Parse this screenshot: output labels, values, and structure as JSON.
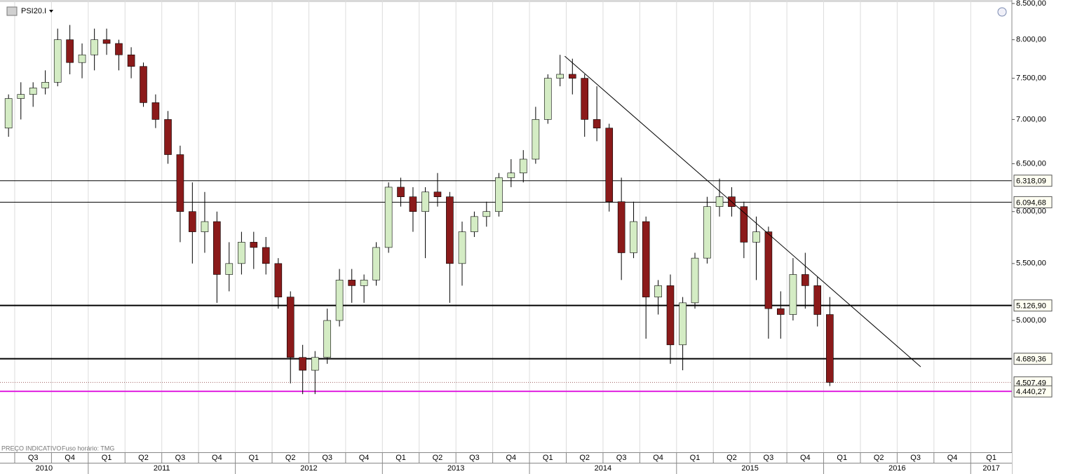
{
  "chart_data": {
    "type": "candlestick",
    "title": "PSI20.I",
    "footnotes": [
      "PREÇO INDICATIVO",
      "Fuso horário: TMG"
    ],
    "log_scale": true,
    "grid": "vertical",
    "xlim": [
      2010.4,
      2017.28
    ],
    "ylim": [
      4010,
      8550
    ],
    "yticks": [
      {
        "value": 8500,
        "label": "8.500,00"
      },
      {
        "value": 8000,
        "label": "8.000,00"
      },
      {
        "value": 7500,
        "label": "7.500,00"
      },
      {
        "value": 7000,
        "label": "7.000,00"
      },
      {
        "value": 6500,
        "label": "6.500,00"
      },
      {
        "value": 6000,
        "label": "6.000,00"
      },
      {
        "value": 5500,
        "label": "5.500,00"
      },
      {
        "value": 5000,
        "label": "5.000,00"
      }
    ],
    "xticks": [
      {
        "value": 2010.5,
        "label": "Q3"
      },
      {
        "value": 2010.75,
        "label": "Q4"
      },
      {
        "value": 2011,
        "label": "Q1"
      },
      {
        "value": 2011.25,
        "label": "Q2"
      },
      {
        "value": 2011.5,
        "label": "Q3"
      },
      {
        "value": 2011.75,
        "label": "Q4"
      },
      {
        "value": 2012,
        "label": "Q1"
      },
      {
        "value": 2012.25,
        "label": "Q2"
      },
      {
        "value": 2012.5,
        "label": "Q3"
      },
      {
        "value": 2012.75,
        "label": "Q4"
      },
      {
        "value": 2013,
        "label": "Q1"
      },
      {
        "value": 2013.25,
        "label": "Q2"
      },
      {
        "value": 2013.5,
        "label": "Q3"
      },
      {
        "value": 2013.75,
        "label": "Q4"
      },
      {
        "value": 2014,
        "label": "Q1"
      },
      {
        "value": 2014.25,
        "label": "Q2"
      },
      {
        "value": 2014.5,
        "label": "Q3"
      },
      {
        "value": 2014.75,
        "label": "Q4"
      },
      {
        "value": 2015,
        "label": "Q1"
      },
      {
        "value": 2015.25,
        "label": "Q2"
      },
      {
        "value": 2015.5,
        "label": "Q3"
      },
      {
        "value": 2015.75,
        "label": "Q4"
      },
      {
        "value": 2016,
        "label": "Q1"
      },
      {
        "value": 2016.25,
        "label": "Q2"
      },
      {
        "value": 2016.5,
        "label": "Q3"
      },
      {
        "value": 2016.75,
        "label": "Q4"
      },
      {
        "value": 2017,
        "label": "Q1"
      }
    ],
    "year_ticks": [
      {
        "value": 2010,
        "label": "2010"
      },
      {
        "value": 2011,
        "label": "2011"
      },
      {
        "value": 2012,
        "label": "2012"
      },
      {
        "value": 2013,
        "label": "2013"
      },
      {
        "value": 2014,
        "label": "2014"
      },
      {
        "value": 2015,
        "label": "2015"
      },
      {
        "value": 2016,
        "label": "2016"
      },
      {
        "value": 2017,
        "label": "2017"
      }
    ],
    "up_color": "#d4ecc4",
    "down_color": "#8b1a1a",
    "candles": {
      "x": [
        2010.458,
        2010.542,
        2010.625,
        2010.708,
        2010.792,
        2010.875,
        2010.958,
        2011.042,
        2011.125,
        2011.208,
        2011.292,
        2011.375,
        2011.458,
        2011.542,
        2011.625,
        2011.708,
        2011.792,
        2011.875,
        2011.958,
        2012.042,
        2012.125,
        2012.208,
        2012.292,
        2012.375,
        2012.458,
        2012.542,
        2012.625,
        2012.708,
        2012.792,
        2012.875,
        2012.958,
        2013.042,
        2013.125,
        2013.208,
        2013.292,
        2013.375,
        2013.458,
        2013.542,
        2013.625,
        2013.708,
        2013.792,
        2013.875,
        2013.958,
        2014.042,
        2014.125,
        2014.208,
        2014.292,
        2014.375,
        2014.458,
        2014.542,
        2014.625,
        2014.708,
        2014.792,
        2014.875,
        2014.958,
        2015.042,
        2015.125,
        2015.208,
        2015.292,
        2015.375,
        2015.458,
        2015.542,
        2015.625,
        2015.708,
        2015.792,
        2015.875,
        2015.958,
        2016.042
      ],
      "open": [
        6900,
        7250,
        7300,
        7380,
        7450,
        8000,
        7700,
        7800,
        8000,
        7950,
        7800,
        7650,
        7200,
        7000,
        6600,
        6000,
        5800,
        5900,
        5400,
        5500,
        5700,
        5650,
        5500,
        5200,
        4700,
        4600,
        4700,
        5000,
        5350,
        5300,
        5350,
        5650,
        6250,
        6150,
        6000,
        6200,
        6150,
        5500,
        5800,
        5950,
        6000,
        6350,
        6400,
        6550,
        7000,
        7500,
        7550,
        7500,
        7000,
        6900,
        6100,
        5600,
        5900,
        5200,
        5300,
        4800,
        5150,
        5550,
        6050,
        6150,
        6050,
        5700,
        5800,
        5100,
        5050,
        5400,
        5300,
        5050
      ],
      "high": [
        7300,
        7450,
        7450,
        7600,
        8150,
        8200,
        7950,
        8150,
        8150,
        8000,
        7900,
        7700,
        7300,
        7100,
        6700,
        6300,
        6200,
        6000,
        5700,
        5800,
        5800,
        5750,
        5550,
        5250,
        4800,
        4750,
        5100,
        5450,
        5450,
        5400,
        5700,
        6300,
        6350,
        6250,
        6250,
        6400,
        6200,
        5900,
        6000,
        6100,
        6400,
        6550,
        6650,
        7150,
        7550,
        7800,
        7750,
        7550,
        7400,
        6950,
        6350,
        6100,
        5950,
        5350,
        5400,
        5200,
        5600,
        6150,
        6340,
        6250,
        6100,
        5950,
        5850,
        5250,
        5550,
        5600,
        5380,
        5200
      ],
      "low": [
        6800,
        7000,
        7150,
        7300,
        7400,
        7550,
        7500,
        7600,
        7800,
        7600,
        7500,
        7150,
        6900,
        6500,
        5700,
        5500,
        5600,
        5150,
        5250,
        5400,
        5450,
        5400,
        5100,
        4500,
        4420,
        4420,
        4650,
        4950,
        5150,
        5150,
        5300,
        5600,
        6050,
        5800,
        5550,
        6050,
        5150,
        5300,
        5750,
        5850,
        5950,
        6250,
        6300,
        6500,
        6950,
        7400,
        7300,
        6800,
        6750,
        6000,
        5350,
        5550,
        4850,
        5050,
        4650,
        4600,
        5100,
        5500,
        5950,
        5950,
        5550,
        5350,
        4850,
        4850,
        5000,
        5100,
        4950,
        4480
      ],
      "close": [
        7250,
        7300,
        7380,
        7450,
        8000,
        7700,
        7800,
        8000,
        7950,
        7800,
        7650,
        7200,
        7000,
        6600,
        6000,
        5800,
        5900,
        5400,
        5500,
        5700,
        5650,
        5500,
        5200,
        4700,
        4600,
        4700,
        5000,
        5350,
        5300,
        5350,
        5650,
        6250,
        6150,
        6000,
        6200,
        6150,
        5500,
        5800,
        5950,
        6000,
        6350,
        6400,
        6550,
        7000,
        7500,
        7550,
        7500,
        7000,
        6900,
        6100,
        5600,
        5900,
        5200,
        5300,
        4800,
        5150,
        5550,
        6050,
        6150,
        6050,
        5700,
        5800,
        5100,
        5050,
        5400,
        5300,
        5050,
        4507.49
      ]
    },
    "levels": [
      {
        "value": 6318.09,
        "label": "6.318,09",
        "color": "#000000",
        "width": 1,
        "style": "solid"
      },
      {
        "value": 6094.68,
        "label": "6.094,68",
        "color": "#000000",
        "width": 1,
        "style": "solid"
      },
      {
        "value": 5126.9,
        "label": "5.126,90",
        "color": "#000000",
        "width": 2,
        "style": "solid"
      },
      {
        "value": 4689.36,
        "label": "4.689,36",
        "color": "#000000",
        "width": 2,
        "style": "solid"
      },
      {
        "value": 4507.49,
        "label": "4.507,49",
        "color": "#a06060",
        "width": 1,
        "style": "dotted"
      },
      {
        "value": 4440.27,
        "label": "4.440,27",
        "color": "#e020e0",
        "width": 2,
        "style": "solid"
      }
    ],
    "trendline": {
      "x": [
        2014.24,
        2016.66
      ],
      "values": [
        7783,
        4627
      ],
      "color": "#000000"
    }
  }
}
